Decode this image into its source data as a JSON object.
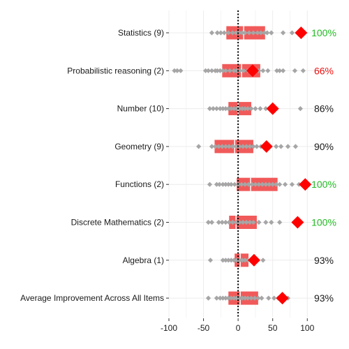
{
  "chart_data": {
    "type": "dot-box",
    "categories": [
      "Statistics (9)",
      "Probabilistic reasoning (2)",
      "Number (10)",
      "Geometry (9)",
      "Functions (2)",
      "Discrete Mathematics (2)",
      "Algebra (1)",
      "Average Improvement Across All Items"
    ],
    "xlim": [
      -100,
      130
    ],
    "xticks": [
      -100,
      -50,
      0,
      50,
      100
    ],
    "reference_line_x": 0,
    "grid": true,
    "colors": {
      "box": "#f15a5a",
      "median": "#ffffff",
      "points": "#a6a6a6",
      "mean_marker": "#ff0000",
      "reference_line": "#000000",
      "pct_default": "#1a1a1a",
      "pct_highlight_green": "#22bb22",
      "pct_highlight_red": "#ee1111"
    },
    "rows": [
      {
        "label": "Statistics (9)",
        "q1": -17,
        "median": 8,
        "q3": 39,
        "mean": 91,
        "points": [
          -38,
          -30,
          -25,
          -20,
          -14,
          -8,
          -3,
          2,
          6,
          10,
          16,
          22,
          28,
          33,
          38,
          42,
          48,
          65,
          78
        ],
        "pct": "100%",
        "pct_color": "green"
      },
      {
        "label": "Probabilistic reasoning (2)",
        "q1": -23,
        "median": 5,
        "q3": 32,
        "mean": 21,
        "points": [
          -92,
          -88,
          -83,
          -47,
          -43,
          -38,
          -33,
          -30,
          -26,
          -22,
          -18,
          -12,
          -6,
          -2,
          3,
          8,
          14,
          19,
          24,
          30,
          36,
          43,
          56,
          60,
          65,
          82,
          94
        ],
        "pct": "66%",
        "pct_color": "red"
      },
      {
        "label": "Number (10)",
        "q1": -14,
        "median": 0,
        "q3": 19,
        "mean": 50,
        "points": [
          -41,
          -36,
          -31,
          -26,
          -22,
          -18,
          -14,
          -10,
          -6,
          -2,
          2,
          6,
          10,
          14,
          19,
          25,
          32,
          40,
          90
        ],
        "pct": "86%",
        "pct_color": "default"
      },
      {
        "label": "Geometry (9)",
        "q1": -34,
        "median": -5,
        "q3": 22,
        "mean": 41,
        "points": [
          -57,
          -38,
          -33,
          -28,
          -23,
          -18,
          -13,
          -8,
          -3,
          2,
          7,
          12,
          17,
          22,
          27,
          33,
          40,
          55,
          62,
          72,
          83
        ],
        "pct": "90%",
        "pct_color": "default"
      },
      {
        "label": "Functions (2)",
        "q1": -2,
        "median": 18,
        "q3": 57,
        "mean": 97,
        "points": [
          -41,
          -31,
          -27,
          -22,
          -18,
          -14,
          -10,
          -5,
          0,
          5,
          10,
          15,
          20,
          25,
          30,
          35,
          40,
          45,
          50,
          55,
          60,
          68,
          78,
          88
        ],
        "pct": "100%",
        "pct_color": "green"
      },
      {
        "label": "Discrete Mathematics (2)",
        "q1": -13,
        "median": -3,
        "q3": 27,
        "mean": 86,
        "points": [
          -43,
          -38,
          -28,
          -23,
          -18,
          -13,
          -8,
          -3,
          2,
          7,
          12,
          17,
          22,
          30,
          40,
          48,
          60
        ],
        "pct": "100%",
        "pct_color": "green"
      },
      {
        "label": "Algebra (1)",
        "q1": -5,
        "median": 3,
        "q3": 15,
        "mean": 23,
        "points": [
          -40,
          -22,
          -18,
          -14,
          -10,
          -6,
          -2,
          2,
          6,
          10,
          14,
          18,
          36
        ],
        "pct": "93%",
        "pct_color": "default"
      },
      {
        "label": "Average Improvement Across All Items",
        "q1": -14,
        "median": 3,
        "q3": 29,
        "mean": 64,
        "points": [
          -43,
          -31,
          -26,
          -22,
          -18,
          -14,
          -10,
          -6,
          -2,
          2,
          6,
          10,
          14,
          19,
          24,
          29,
          34,
          44,
          52,
          58,
          72
        ],
        "pct": "93%",
        "pct_color": "default"
      }
    ]
  }
}
